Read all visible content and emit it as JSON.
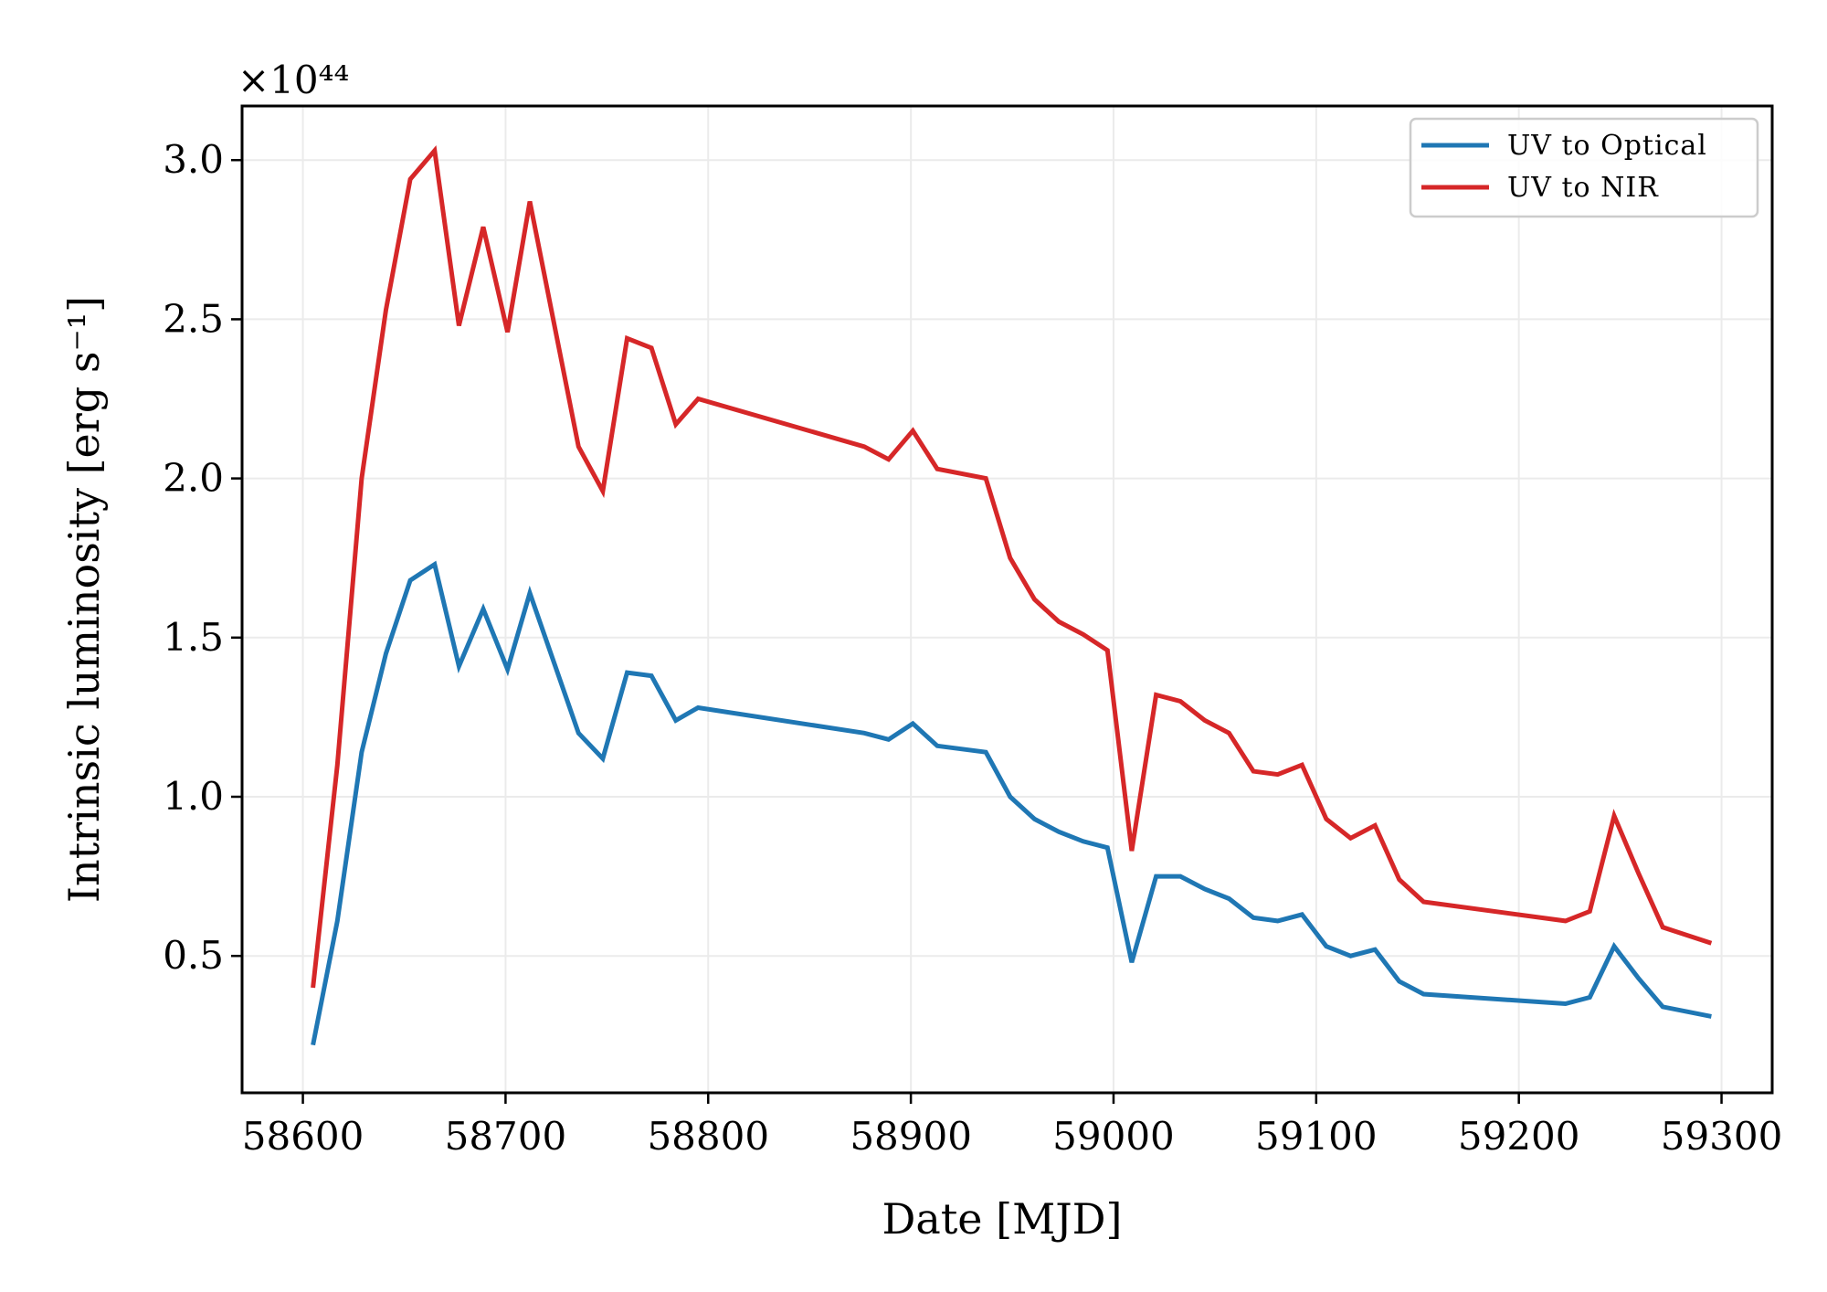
{
  "chart_data": {
    "type": "line",
    "title": "",
    "xlabel": "Date [MJD]",
    "ylabel": "Intrinsic luminosity [erg s⁻¹]",
    "y_multiplier": "×10⁴⁴",
    "xlim": [
      58570,
      59325
    ],
    "ylim": [
      0.07,
      3.17
    ],
    "xticks": [
      58600,
      58700,
      58800,
      58900,
      59000,
      59100,
      59200,
      59300
    ],
    "yticks": [
      0.5,
      1.0,
      1.5,
      2.0,
      2.5,
      3.0
    ],
    "ytick_labels": [
      "0.5",
      "1.0",
      "1.5",
      "2.0",
      "2.5",
      "3.0"
    ],
    "grid": true,
    "legend_position": "top-right",
    "x": [
      58605,
      58617,
      58629,
      58641,
      58653,
      58665,
      58677,
      58689,
      58701,
      58712,
      58736,
      58748,
      58760,
      58772,
      58784,
      58795,
      58877,
      58889,
      58901,
      58913,
      58937,
      58949,
      58961,
      58973,
      58985,
      58997,
      59009,
      59021,
      59033,
      59045,
      59057,
      59069,
      59081,
      59093,
      59105,
      59117,
      59129,
      59141,
      59153,
      59223,
      59235,
      59247,
      59259,
      59271,
      59295
    ],
    "series": [
      {
        "name": "UV to Optical",
        "color": "#1f77b4",
        "values": [
          0.22,
          0.61,
          1.14,
          1.45,
          1.68,
          1.73,
          1.41,
          1.59,
          1.4,
          1.64,
          1.2,
          1.12,
          1.39,
          1.38,
          1.24,
          1.28,
          1.2,
          1.18,
          1.23,
          1.16,
          1.14,
          1.0,
          0.93,
          0.89,
          0.86,
          0.84,
          0.48,
          0.75,
          0.75,
          0.71,
          0.68,
          0.62,
          0.61,
          0.63,
          0.53,
          0.5,
          0.52,
          0.42,
          0.38,
          0.35,
          0.37,
          0.53,
          0.43,
          0.34,
          0.31
        ]
      },
      {
        "name": "UV to NIR",
        "color": "#d62728",
        "values": [
          0.4,
          1.1,
          2.0,
          2.53,
          2.94,
          3.03,
          2.48,
          2.79,
          2.46,
          2.87,
          2.1,
          1.96,
          2.44,
          2.41,
          2.17,
          2.25,
          2.1,
          2.06,
          2.15,
          2.03,
          2.0,
          1.75,
          1.62,
          1.55,
          1.51,
          1.46,
          0.83,
          1.32,
          1.3,
          1.24,
          1.2,
          1.08,
          1.07,
          1.1,
          0.93,
          0.87,
          0.91,
          0.74,
          0.67,
          0.61,
          0.64,
          0.94,
          0.76,
          0.59,
          0.54
        ]
      }
    ]
  }
}
